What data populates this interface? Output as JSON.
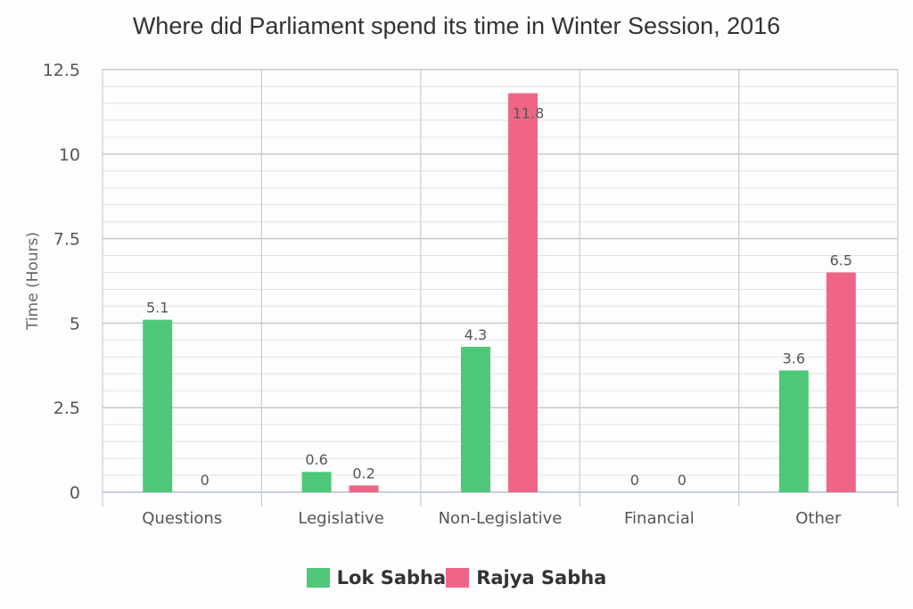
{
  "chart_data": {
    "type": "bar",
    "title": "Where did Parliament spend its time in Winter Session, 2016",
    "xlabel": "",
    "ylabel": "Time (Hours)",
    "ylim": [
      0,
      12.5
    ],
    "yticks": [
      "0",
      "2.5",
      "5",
      "7.5",
      "10",
      "12.5"
    ],
    "categories": [
      "Questions",
      "Legislative",
      "Non-Legislative",
      "Financial",
      "Other"
    ],
    "series": [
      {
        "name": "Lok Sabha",
        "color": "#4ec878",
        "values": [
          5.1,
          0.6,
          4.3,
          0,
          3.6
        ]
      },
      {
        "name": "Rajya Sabha",
        "color": "#f06586",
        "values": [
          0,
          0.2,
          11.8,
          0,
          6.5
        ]
      }
    ],
    "grid": true,
    "legend_position": "bottom"
  },
  "legend": {
    "items": [
      {
        "label": "Lok Sabha",
        "color": "#4ec878"
      },
      {
        "label": "Rajya Sabha",
        "color": "#f06586"
      }
    ]
  }
}
